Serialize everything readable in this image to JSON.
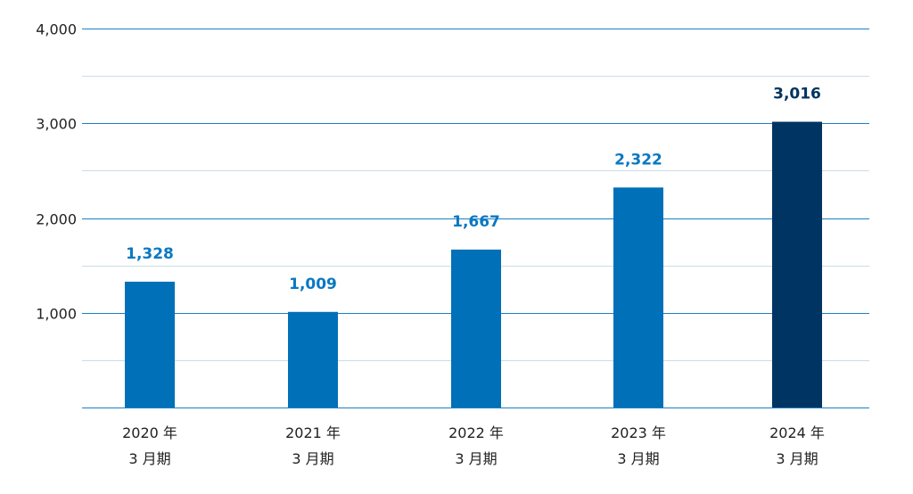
{
  "chart_data": {
    "type": "bar",
    "categories": [
      [
        "2020 年",
        "3 月期"
      ],
      [
        "2021 年",
        "3 月期"
      ],
      [
        "2022 年",
        "3 月期"
      ],
      [
        "2023 年",
        "3 月期"
      ],
      [
        "2024 年",
        "3 月期"
      ]
    ],
    "values": [
      1328,
      1009,
      1667,
      2322,
      3016
    ],
    "data_labels": [
      "1,328",
      "1,009",
      "1,667",
      "2,322",
      "3,016"
    ],
    "ylim": [
      0,
      4000
    ],
    "yticks": [
      {
        "value": 1000,
        "label": "1,000"
      },
      {
        "value": 2000,
        "label": "2,000"
      },
      {
        "value": 3000,
        "label": "3,000"
      },
      {
        "value": 4000,
        "label": "4,000"
      }
    ],
    "minor_gridlines": [
      500,
      1500,
      2500,
      3500
    ],
    "grid": true,
    "legend": "none",
    "colors": {
      "bar": "#0070b8",
      "highlight_bar": "#003462",
      "label": "#0a78c2",
      "highlight_label": "#003462",
      "major_grid": "#1a80c4",
      "minor_grid": "#c9dce8",
      "axis": "#1a80c4"
    },
    "highlight_index": 4
  }
}
